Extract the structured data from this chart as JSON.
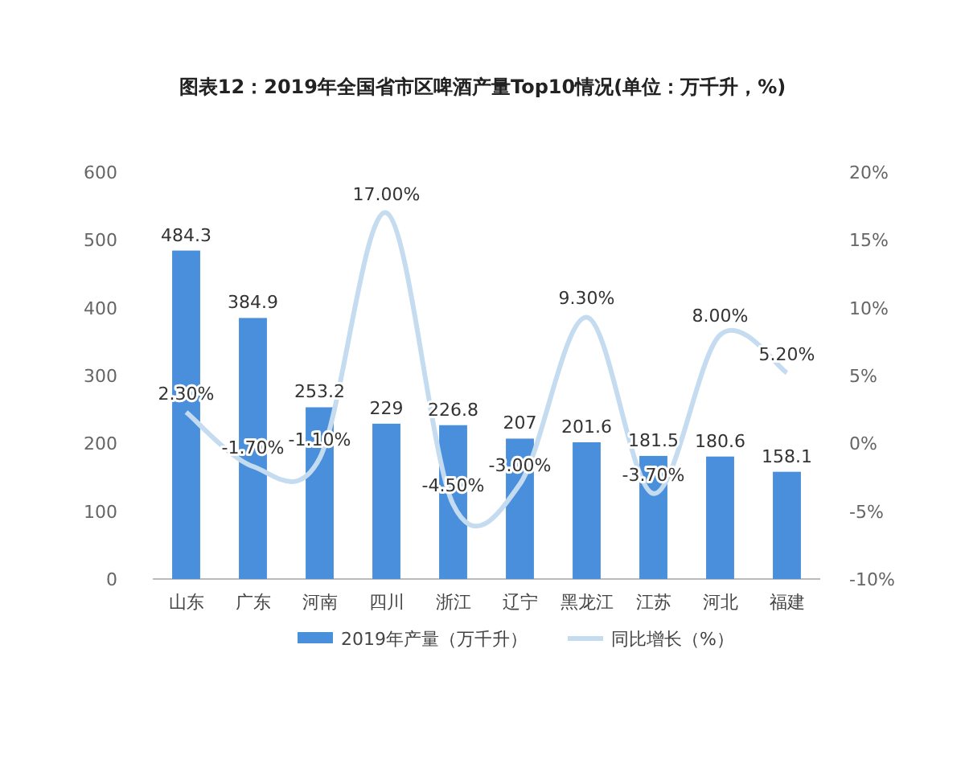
{
  "chart_data": {
    "type": "bar",
    "title": "图表12：2019年全国省市区啤酒产量Top10情况(单位：万千升，%)",
    "categories": [
      "山东",
      "广东",
      "河南",
      "四川",
      "浙江",
      "辽宁",
      "黑龙江",
      "江苏",
      "河北",
      "福建"
    ],
    "series": [
      {
        "name": "2019年产量（万千升）",
        "color": "#4a8fdb",
        "values": [
          484.3,
          384.9,
          253.2,
          229,
          226.8,
          207,
          201.6,
          181.5,
          180.6,
          158.1
        ],
        "value_labels": [
          "484.3",
          "384.9",
          "253.2",
          "229",
          "226.8",
          "207",
          "201.6",
          "181.5",
          "180.6",
          "158.1"
        ]
      },
      {
        "name": "同比增长（%）",
        "type": "line",
        "axis": "y2",
        "color": "#c5dcf0",
        "values": [
          2.3,
          -1.7,
          -1.1,
          17.0,
          -4.5,
          -3.0,
          9.3,
          -3.7,
          8.0,
          5.2
        ],
        "value_labels": [
          "2.30%",
          "-1.70%",
          "-1.10%",
          "17.00%",
          "-4.50%",
          "-3.00%",
          "9.30%",
          "-3.70%",
          "8.00%",
          "5.20%"
        ]
      }
    ],
    "ylim": [
      0,
      600
    ],
    "yticks": [
      0,
      100,
      200,
      300,
      400,
      500,
      600
    ],
    "y2lim": [
      -10,
      20
    ],
    "y2ticks": [
      {
        "value": -10,
        "label": "-10%"
      },
      {
        "value": -5,
        "label": "-5%"
      },
      {
        "value": 0,
        "label": "0%"
      },
      {
        "value": 5,
        "label": "5%"
      },
      {
        "value": 10,
        "label": "10%"
      },
      {
        "value": 15,
        "label": "15%"
      },
      {
        "value": 20,
        "label": "20%"
      }
    ],
    "legend": "bottom",
    "marker": "none",
    "grid": false
  }
}
